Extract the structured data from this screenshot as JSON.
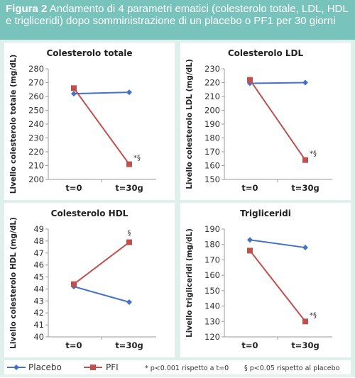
{
  "figure": {
    "label": "Figura 2",
    "caption": "Andamento di 4 parametri ematici (colesterolo totale, LDL, HDL e trigliceridi) dopo somministrazione di un placebo o PF1 per 30 giorni"
  },
  "colors": {
    "header_bg": "#78c3bb",
    "figure_bg": "#dff0ec",
    "placebo": "#4472c4",
    "pfi": "#c0504d"
  },
  "legend": {
    "placebo": "Placebo",
    "pfi": "PFI",
    "note1": "* p<0.001 rispetto a t=0",
    "note2": "§ p<0.05 rispetto al placebo"
  },
  "chart_data": [
    {
      "type": "line",
      "title": "Colesterolo totale",
      "ylabel": "Livello colesterolo totale (mg/dL)",
      "categories": [
        "t=0",
        "t=30g"
      ],
      "ylim": [
        200,
        280
      ],
      "yticks": [
        200,
        210,
        220,
        230,
        240,
        250,
        260,
        270,
        280
      ],
      "series": [
        {
          "name": "Placebo",
          "values": [
            262,
            263
          ],
          "labels": [
            "",
            ""
          ]
        },
        {
          "name": "PFI",
          "values": [
            266,
            211
          ],
          "labels": [
            "",
            "*§"
          ]
        }
      ]
    },
    {
      "type": "line",
      "title": "Colesterolo LDL",
      "ylabel": "Livello colesterolo LDL (mg/dL)",
      "categories": [
        "t=0",
        "t=30g"
      ],
      "ylim": [
        150,
        230
      ],
      "yticks": [
        150,
        160,
        170,
        180,
        190,
        200,
        210,
        220,
        230
      ],
      "series": [
        {
          "name": "Placebo",
          "values": [
            219.5,
            220
          ],
          "labels": [
            "",
            ""
          ]
        },
        {
          "name": "PFI",
          "values": [
            222,
            164
          ],
          "labels": [
            "",
            "*§"
          ]
        }
      ]
    },
    {
      "type": "line",
      "title": "Colesterolo HDL",
      "ylabel": "Livello colesterolo HDL (mg/dL)",
      "categories": [
        "t=0",
        "t=30g"
      ],
      "ylim": [
        40,
        49
      ],
      "yticks": [
        40,
        41,
        42,
        43,
        44,
        45,
        46,
        47,
        48,
        49
      ],
      "series": [
        {
          "name": "Placebo",
          "values": [
            44.2,
            42.9
          ],
          "labels": [
            "",
            ""
          ]
        },
        {
          "name": "PFI",
          "values": [
            44.4,
            47.9
          ],
          "labels": [
            "",
            "§"
          ]
        }
      ]
    },
    {
      "type": "line",
      "title": "Trigliceridi",
      "ylabel": "Livello trigliceridi (mg/dL)",
      "categories": [
        "t=0",
        "t=30g"
      ],
      "ylim": [
        120,
        190
      ],
      "yticks": [
        120,
        130,
        140,
        150,
        160,
        170,
        180,
        190
      ],
      "series": [
        {
          "name": "Placebo",
          "values": [
            183,
            178
          ],
          "labels": [
            "",
            ""
          ]
        },
        {
          "name": "PFI",
          "values": [
            176,
            130
          ],
          "labels": [
            "",
            "*§"
          ]
        }
      ]
    }
  ]
}
